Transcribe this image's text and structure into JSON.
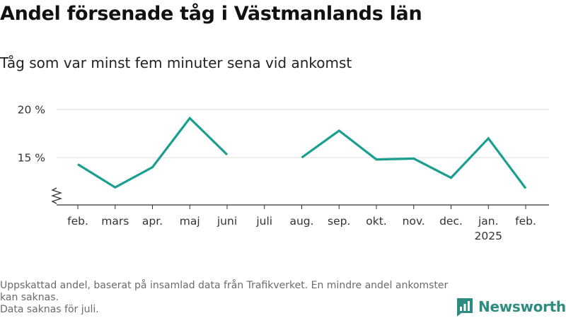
{
  "header": {
    "title": "Andel försenade tåg i Västmanlands län",
    "subtitle": "Tåg som var minst fem minuter sena vid ankomst"
  },
  "footnote": {
    "line1": "Uppskattad andel, baserat på insamlad data från Trafikverket. En mindre andel ankomster kan saknas.",
    "line2": "Data saknas för juli."
  },
  "logo": {
    "text": "Newsworthy",
    "icon": "bar-chart-logo-icon"
  },
  "colors": {
    "line": "#1a9e8f",
    "grid": "#dddddd",
    "axis": "#333333",
    "brand": "#2e8b80"
  },
  "chart_data": {
    "type": "line",
    "title": "Andel försenade tåg i Västmanlands län",
    "subtitle": "Tåg som var minst fem minuter sena vid ankomst",
    "categories": [
      "feb.",
      "mars",
      "apr.",
      "maj",
      "juni",
      "juli",
      "aug.",
      "sep.",
      "okt.",
      "nov.",
      "dec.",
      "jan.",
      "feb."
    ],
    "year_label": {
      "index": 11,
      "text": "2025"
    },
    "series": [
      {
        "values": [
          14.3,
          11.9,
          14.0,
          19.1,
          15.3,
          null,
          15.0,
          17.8,
          14.8,
          14.9,
          12.9,
          17.0,
          11.8
        ]
      }
    ],
    "ylim": [
      10,
      20
    ],
    "y_ticks": [
      15,
      20
    ],
    "y_tick_labels": [
      "15 %",
      "20 %"
    ],
    "axis_break": true,
    "grid": true,
    "xlabel": "",
    "ylabel": ""
  }
}
